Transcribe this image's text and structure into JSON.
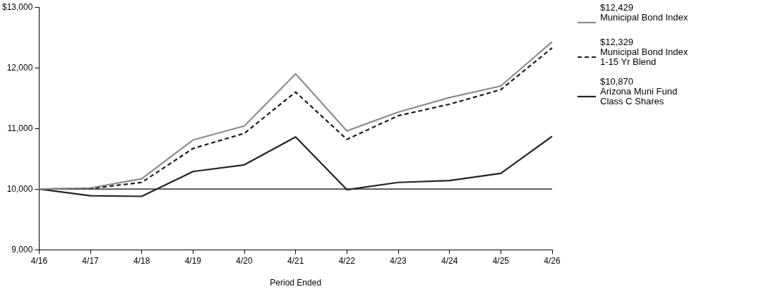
{
  "chart_data": {
    "type": "line",
    "xlabel": "Period Ended",
    "categories": [
      "4/16",
      "4/17",
      "4/18",
      "4/19",
      "4/20",
      "4/21",
      "4/22",
      "4/23",
      "4/24",
      "4/25",
      "4/26"
    ],
    "ylim": [
      9000,
      13000
    ],
    "yticks": [
      {
        "value": 9000,
        "label": "9,000"
      },
      {
        "value": 10000,
        "label": "10,000"
      },
      {
        "value": 11000,
        "label": "11,000"
      },
      {
        "value": 12000,
        "label": "12,000"
      },
      {
        "value": 13000,
        "label": "$13,000"
      }
    ],
    "grid": false,
    "legend": "right",
    "marker": "none",
    "ref_lines": [
      {
        "axis": "y",
        "value": 10000,
        "color": "#000000"
      }
    ],
    "series": [
      {
        "name": "$12,429\nMunicipal Bond Index",
        "color": "#8c8c8c",
        "line_style": "solid",
        "values": [
          10000,
          10020,
          10170,
          10810,
          11040,
          11900,
          10960,
          11270,
          11510,
          11700,
          12429
        ]
      },
      {
        "name": "$12,329\nMunicipal Bond Index 1-15 Yr Blend",
        "color": "#1a1a1a",
        "line_style": "dashed",
        "values": [
          10000,
          10010,
          10110,
          10670,
          10920,
          11600,
          10820,
          11210,
          11400,
          11640,
          12329
        ]
      },
      {
        "name": "$10,870\nArizona Muni Fund Class C Shares",
        "color": "#222222",
        "line_style": "solid",
        "values": [
          10000,
          9890,
          9880,
          10290,
          10400,
          10860,
          9990,
          10110,
          10140,
          10260,
          10870
        ]
      }
    ]
  }
}
